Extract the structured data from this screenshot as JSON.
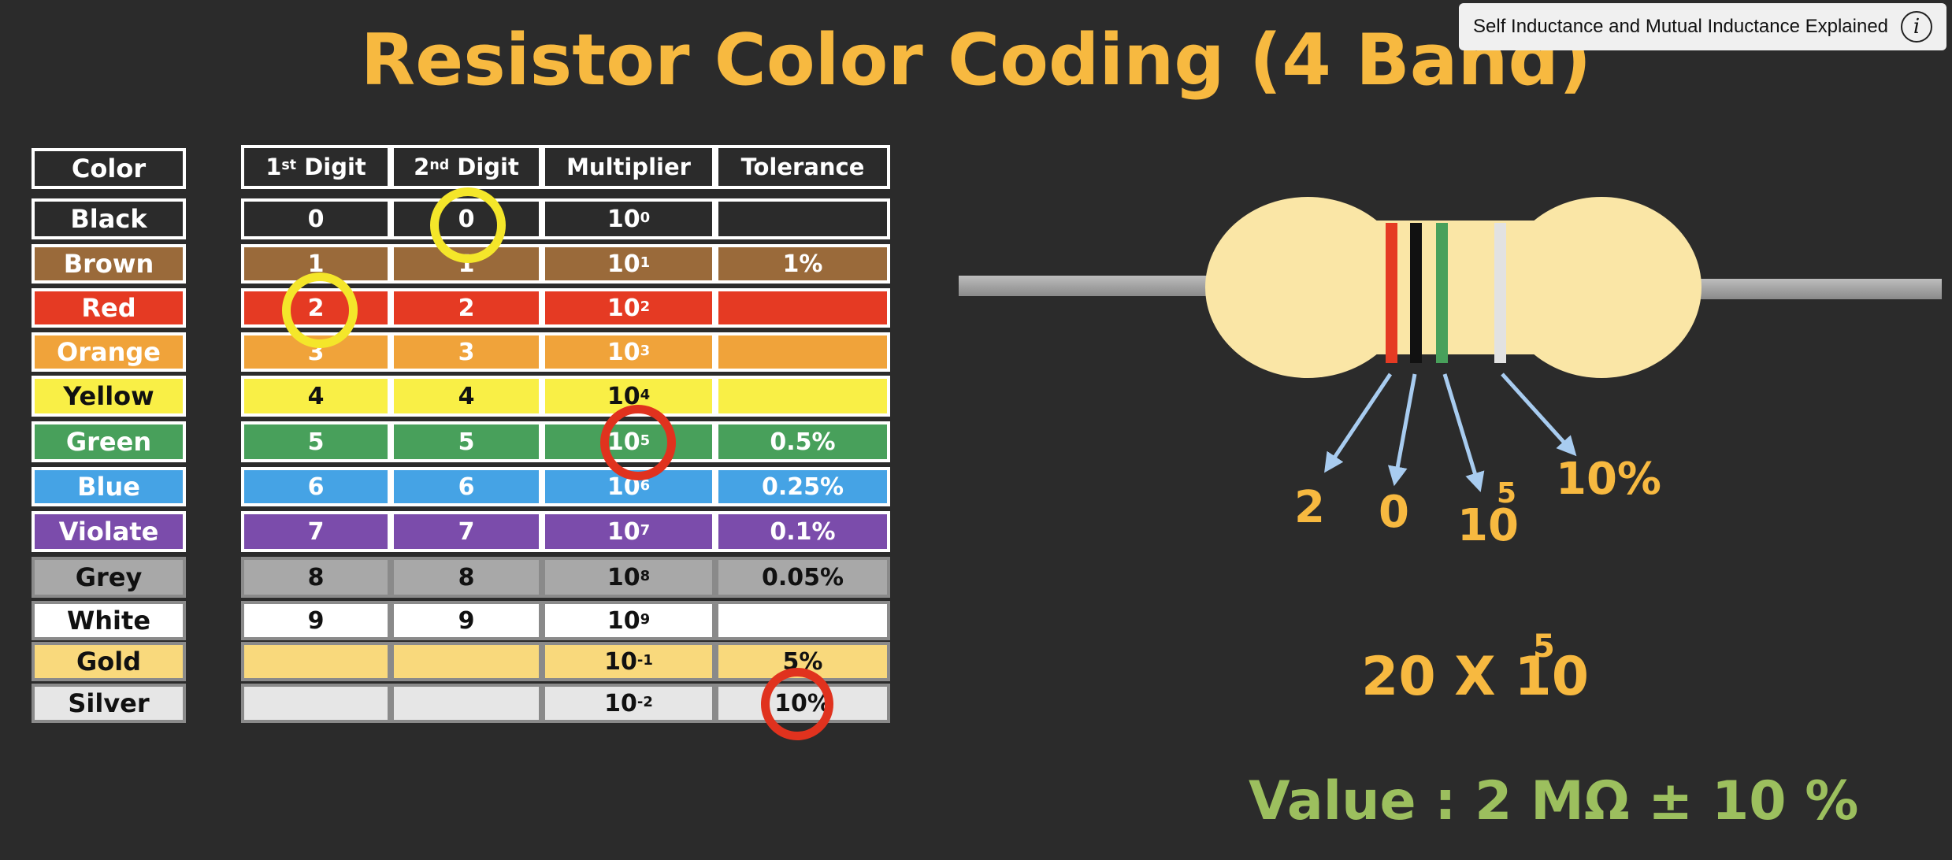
{
  "title": "Resistor Color Coding (4 Band)",
  "info_card": {
    "text": "Self Inductance and Mutual Inductance Explained",
    "icon": "info-icon"
  },
  "table": {
    "color_header": "Color",
    "headers": [
      {
        "main": "1",
        "sup": "st",
        "rest": " Digit"
      },
      {
        "main": "2",
        "sup": "nd",
        "rest": " Digit"
      },
      {
        "main": "Multiplier",
        "sup": "",
        "rest": ""
      },
      {
        "main": "Tolerance",
        "sup": "",
        "rest": ""
      }
    ],
    "rows": [
      {
        "color": "Black",
        "bg": "#2b2b2b",
        "text": "#ffffff",
        "d1": "0",
        "d2": "0",
        "mult_exp": "0",
        "tol": ""
      },
      {
        "color": "Brown",
        "bg": "#9a6a3a",
        "text": "#ffffff",
        "d1": "1",
        "d2": "1",
        "mult_exp": "1",
        "tol": "1%"
      },
      {
        "color": "Red",
        "bg": "#e53a23",
        "text": "#ffffff",
        "d1": "2",
        "d2": "2",
        "mult_exp": "2",
        "tol": ""
      },
      {
        "color": "Orange",
        "bg": "#f0a33a",
        "text": "#ffffff",
        "d1": "3",
        "d2": "3",
        "mult_exp": "3",
        "tol": ""
      },
      {
        "color": "Yellow",
        "bg": "#f9ef46",
        "text": "#111111",
        "d1": "4",
        "d2": "4",
        "mult_exp": "4",
        "tol": ""
      },
      {
        "color": "Green",
        "bg": "#48a05b",
        "text": "#ffffff",
        "d1": "5",
        "d2": "5",
        "mult_exp": "5",
        "tol": "0.5%"
      },
      {
        "color": "Blue",
        "bg": "#45a3e5",
        "text": "#ffffff",
        "d1": "6",
        "d2": "6",
        "mult_exp": "6",
        "tol": "0.25%"
      },
      {
        "color": "Violate",
        "bg": "#7b4cab",
        "text": "#ffffff",
        "d1": "7",
        "d2": "7",
        "mult_exp": "7",
        "tol": "0.1%"
      },
      {
        "color": "Grey",
        "bg": "#a8a8a8",
        "text": "#111111",
        "d1": "8",
        "d2": "8",
        "mult_exp": "8",
        "tol": "0.05%"
      },
      {
        "color": "White",
        "bg": "#ffffff",
        "text": "#111111",
        "d1": "9",
        "d2": "9",
        "mult_exp": "9",
        "tol": ""
      },
      {
        "color": "Gold",
        "bg": "#f9d97c",
        "text": "#111111",
        "d1": "",
        "d2": "",
        "mult_exp": "-1",
        "tol": "5%"
      },
      {
        "color": "Silver",
        "bg": "#e6e6e6",
        "text": "#111111",
        "d1": "",
        "d2": "",
        "mult_exp": "-2",
        "tol": "10%"
      }
    ],
    "mult_base": "10"
  },
  "highlights": {
    "colors": {
      "yellow": "#f4e62a",
      "red": "#e0321e"
    }
  },
  "resistor": {
    "body_color": "#fae6a6",
    "bands": [
      "#e53a23",
      "#111111",
      "#48a05b",
      "#e2e2e2"
    ],
    "labels": {
      "d1": "2",
      "d2": "0",
      "mult_base": "10",
      "mult_exp": "5",
      "tol": "10%"
    },
    "arrow_color": "#a8ccf0"
  },
  "formula": {
    "base": "20 X 10",
    "exp": "5"
  },
  "value_text": "Value :  2 MΩ ± 10 %"
}
